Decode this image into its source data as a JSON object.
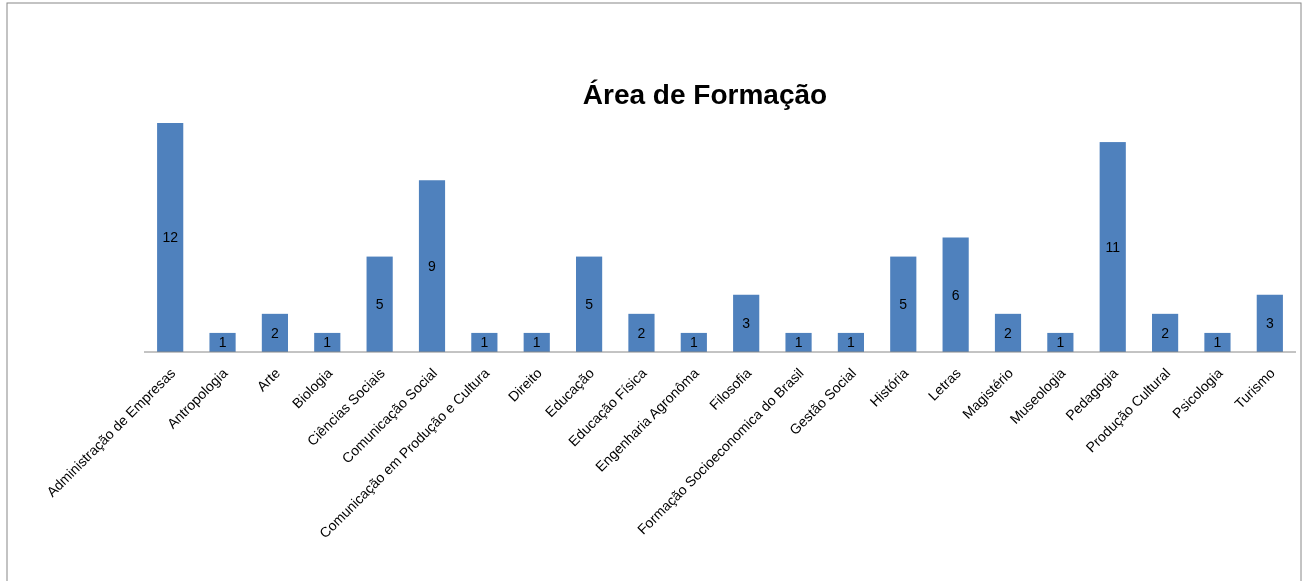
{
  "chart_data": {
    "type": "bar",
    "title": "Área de Formação",
    "categories": [
      "Administração de Empresas",
      "Antropologia",
      "Arte",
      "Biologia",
      "Ciências Sociais",
      "Comunicação Social",
      "Comunicação em Produção e Cultura",
      "Direito",
      "Educação",
      "Educação Física",
      "Engenharia Agronôma",
      "Filosofia",
      "Formação Socioeconomica do Brasil",
      "Gestão Social",
      "História",
      "Letras",
      "Magistério",
      "Museologia",
      "Pedagogia",
      "Produção Cultural",
      "Psicologia",
      "Turismo"
    ],
    "values": [
      12,
      1,
      2,
      1,
      5,
      9,
      1,
      1,
      5,
      2,
      1,
      3,
      1,
      1,
      5,
      6,
      2,
      1,
      11,
      2,
      1,
      3
    ],
    "color": "#4f81bd",
    "data_labels": true
  }
}
